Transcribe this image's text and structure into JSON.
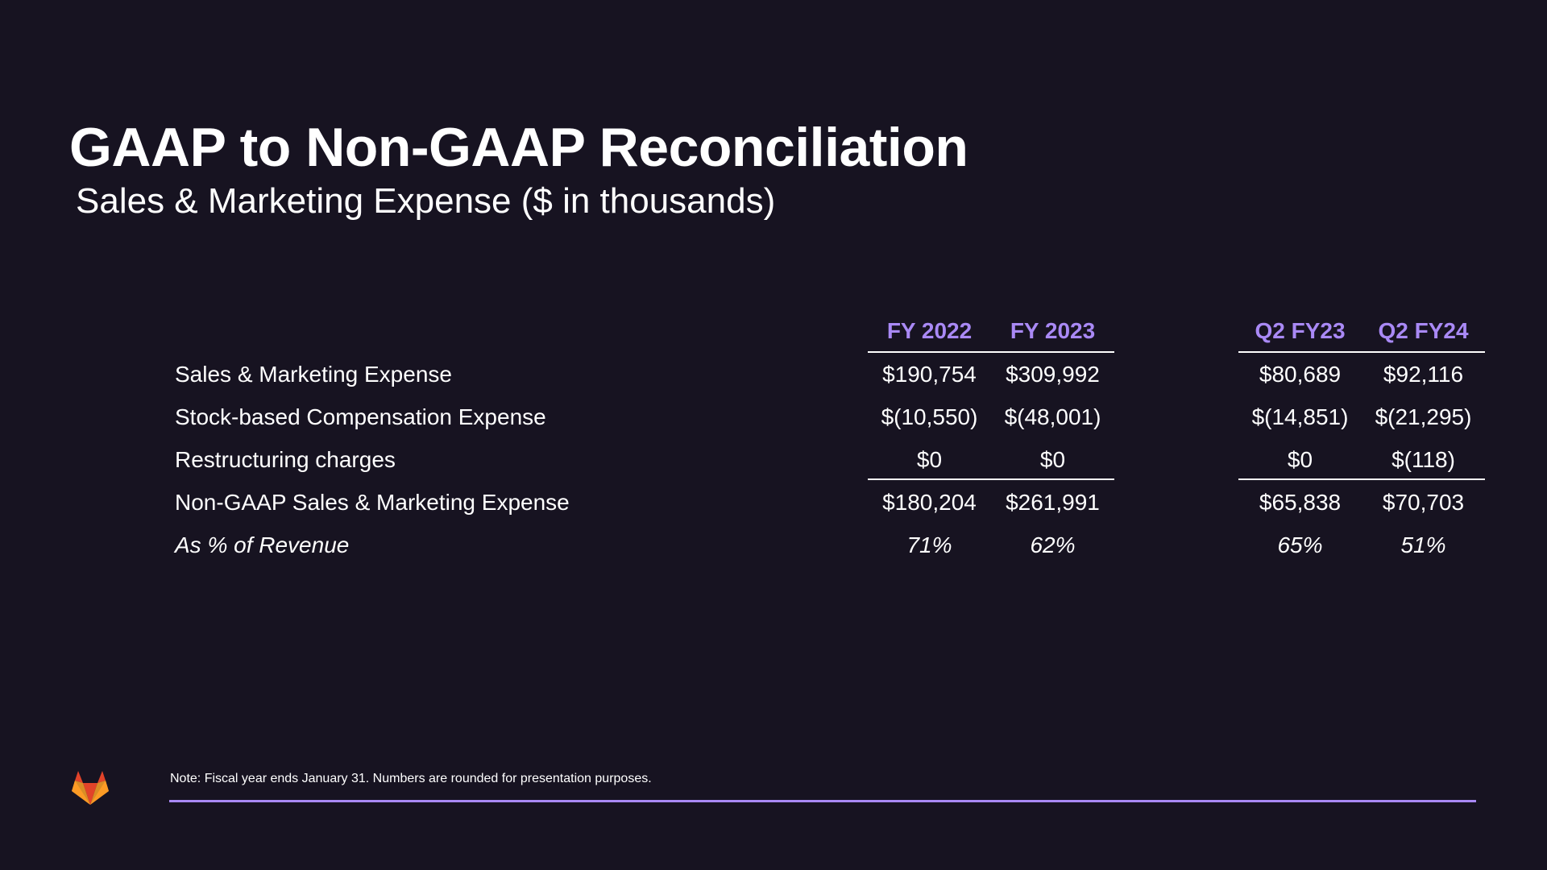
{
  "slide": {
    "title": "GAAP to Non-GAAP Reconciliation",
    "subtitle": "Sales & Marketing Expense ($ in thousands)"
  },
  "table": {
    "columns": [
      "FY 2022",
      "FY 2023",
      "Q2 FY23",
      "Q2 FY24"
    ],
    "rows": [
      {
        "label": "Sales & Marketing Expense",
        "values": [
          "$190,754",
          "$309,992",
          "$80,689",
          "$92,116"
        ]
      },
      {
        "label": "Stock-based Compensation Expense",
        "values": [
          "$(10,550)",
          "$(48,001)",
          "$(14,851)",
          "$(21,295)"
        ]
      },
      {
        "label": "Restructuring charges",
        "values": [
          "$0",
          "$0",
          "$0",
          "$(118)"
        ]
      },
      {
        "label": "Non-GAAP Sales & Marketing Expense",
        "values": [
          "$180,204",
          "$261,991",
          "$65,838",
          "$70,703"
        ]
      },
      {
        "label": "As % of Revenue",
        "values": [
          "71%",
          "62%",
          "65%",
          "51%"
        ]
      }
    ]
  },
  "footer": {
    "note": "Note: Fiscal year ends January 31. Numbers are rounded for presentation purposes.",
    "logo_icon": "gitlab-tanuki-icon"
  },
  "colors": {
    "background": "#171321",
    "accent": "#a989f5",
    "text": "#ffffff",
    "logo_orange": "#fc6d26",
    "logo_red": "#e24329",
    "logo_light": "#fca326"
  }
}
